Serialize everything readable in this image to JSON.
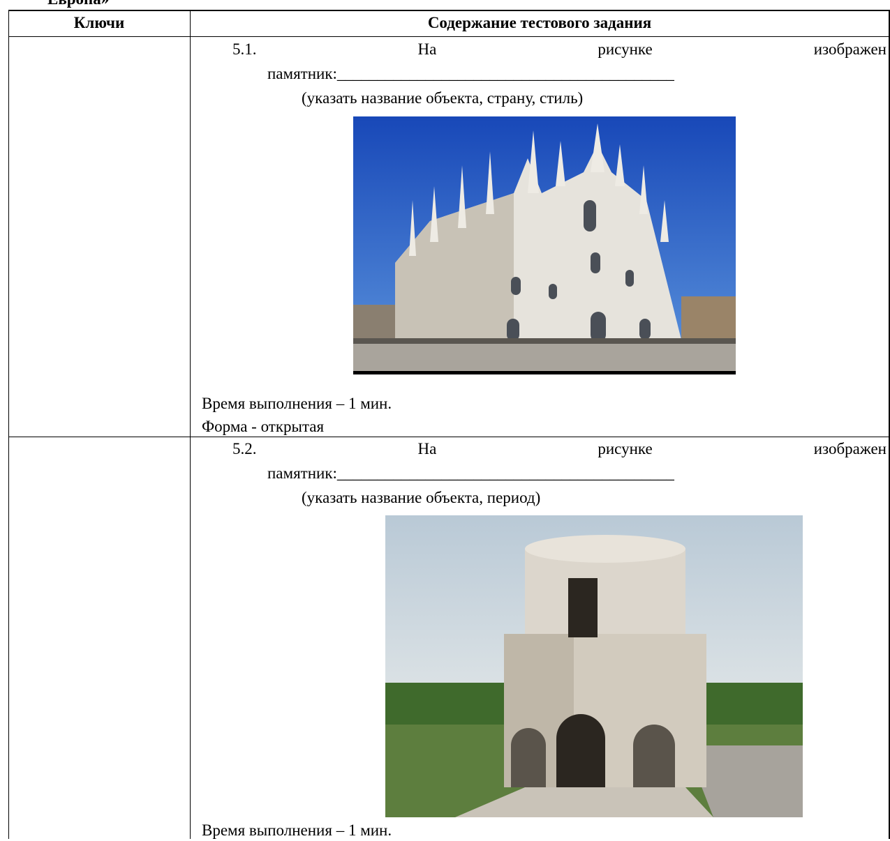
{
  "header": {
    "title": "Европа»"
  },
  "table": {
    "columns": [
      "Ключи",
      "Содержание тестового задания"
    ],
    "rows": [
      {
        "question": "5.1. На рисунке изображен",
        "answer_line": "памятник:__________________________________________",
        "instruction": "(указать название объекта, страну, стиль)",
        "time": "Время выполнения – 1 мин.",
        "form": "Форма - открытая"
      },
      {
        "question": "5.2. На рисунке изображен",
        "answer_line": "памятник:__________________________________________",
        "instruction": "(указать название объекта, период)",
        "time": "Время выполнения – 1 мин."
      }
    ]
  }
}
